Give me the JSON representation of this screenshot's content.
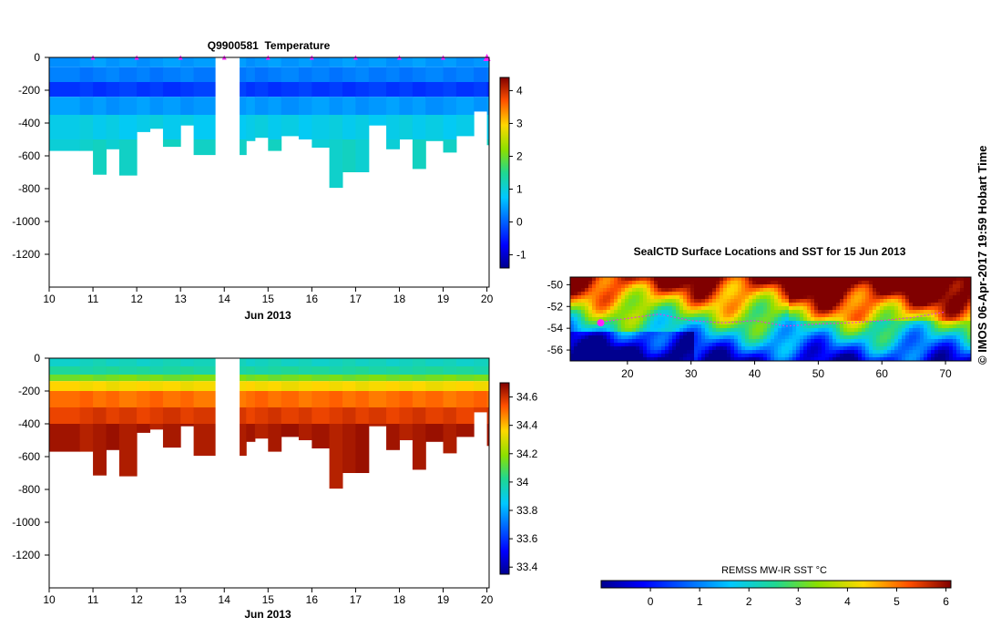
{
  "chart_data": [
    {
      "type": "heatmap",
      "id": "temperature",
      "title": "Q9900581  Temperature",
      "xlabel": "Jun 2013",
      "ylabel": "",
      "xlim": [
        10,
        20.05
      ],
      "ylim": [
        -1400,
        0
      ],
      "xticks": [
        "10",
        "11",
        "12",
        "13",
        "14",
        "15",
        "16",
        "17",
        "18",
        "19",
        "20"
      ],
      "yticks": [
        "0",
        "-200",
        "-400",
        "-600",
        "-800",
        "-1000",
        "-1200"
      ],
      "colorbar": {
        "min": -1.4,
        "max": 4.4,
        "ticks": [
          "-1",
          "0",
          "1",
          "2",
          "3",
          "4"
        ]
      },
      "profile_days": [
        10.0,
        10.7,
        11.0,
        11.3,
        11.6,
        12.0,
        12.3,
        12.6,
        13.0,
        13.3,
        14.5,
        14.7,
        15.0,
        15.3,
        15.7,
        16.0,
        16.4,
        16.7,
        17.0,
        17.3,
        17.7,
        18.0,
        18.3,
        18.6,
        19.0,
        19.3,
        19.7,
        20.0
      ],
      "profile_max_depth": [
        -570,
        -570,
        -715,
        -560,
        -720,
        -455,
        -435,
        -545,
        -415,
        -595,
        -510,
        -490,
        -570,
        -480,
        -500,
        -550,
        -795,
        -700,
        -700,
        -415,
        -560,
        -500,
        -680,
        -510,
        -580,
        -480,
        -330,
        -535
      ],
      "markers_days": [
        11,
        12,
        13,
        14,
        15,
        16,
        17,
        18,
        19,
        20
      ],
      "gap": [
        13.8,
        14.35
      ],
      "layers": [
        {
          "from": 0,
          "to": -60,
          "value": 0.4
        },
        {
          "from": -60,
          "to": -150,
          "value": 0.2
        },
        {
          "from": -150,
          "to": -240,
          "value": -0.3
        },
        {
          "from": -240,
          "to": -350,
          "value": 0.4
        },
        {
          "from": -350,
          "to": -500,
          "value": 0.9
        },
        {
          "from": -500,
          "to": -800,
          "value": 1.1
        }
      ]
    },
    {
      "type": "heatmap",
      "id": "salinity",
      "title": "",
      "xlabel": "Jun 2013",
      "ylabel": "",
      "xlim": [
        10,
        20.05
      ],
      "ylim": [
        -1400,
        0
      ],
      "xticks": [
        "10",
        "11",
        "12",
        "13",
        "14",
        "15",
        "16",
        "17",
        "18",
        "19",
        "20"
      ],
      "yticks": [
        "0",
        "-200",
        "-400",
        "-600",
        "-800",
        "-1000",
        "-1200"
      ],
      "colorbar": {
        "min": 33.35,
        "max": 34.7,
        "ticks": [
          "33.4",
          "33.6",
          "33.8",
          "34",
          "34.2",
          "34.4",
          "34.6"
        ]
      },
      "layers": [
        {
          "from": 0,
          "to": -50,
          "value": 33.95
        },
        {
          "from": -50,
          "to": -100,
          "value": 34.0
        },
        {
          "from": -100,
          "to": -140,
          "value": 34.15
        },
        {
          "from": -140,
          "to": -200,
          "value": 34.35
        },
        {
          "from": -200,
          "to": -300,
          "value": 34.5
        },
        {
          "from": -300,
          "to": -400,
          "value": 34.58
        },
        {
          "from": -400,
          "to": -800,
          "value": 34.65
        }
      ]
    },
    {
      "type": "heatmap",
      "id": "sst_map",
      "title": "SealCTD Surface Locations and SST for 15 Jun 2013",
      "xlim": [
        11,
        74
      ],
      "ylim": [
        -57,
        -49.3
      ],
      "xticks": [
        "20",
        "30",
        "40",
        "50",
        "60",
        "70"
      ],
      "yticks": [
        "-50",
        "-52",
        "-54",
        "-56"
      ],
      "colorbar": {
        "label": "REMSS MW-IR SST °C",
        "min": -1,
        "max": 6.1,
        "ticks": [
          "0",
          "1",
          "2",
          "3",
          "4",
          "5",
          "6"
        ]
      },
      "track": [
        [
          16,
          -53.4
        ],
        [
          20,
          -53.1
        ],
        [
          25,
          -52.7
        ],
        [
          30,
          -53.3
        ],
        [
          35,
          -53.5
        ],
        [
          40,
          -53.3
        ],
        [
          45,
          -53.8
        ],
        [
          50,
          -53.6
        ],
        [
          55,
          -53.5
        ],
        [
          60,
          -53.3
        ],
        [
          65,
          -53.0
        ],
        [
          70,
          -52.5
        ]
      ],
      "current_position": [
        15.8,
        -53.5
      ]
    }
  ],
  "credit": "© IMOS 06-Apr-2017 19:59 Hobart Time"
}
